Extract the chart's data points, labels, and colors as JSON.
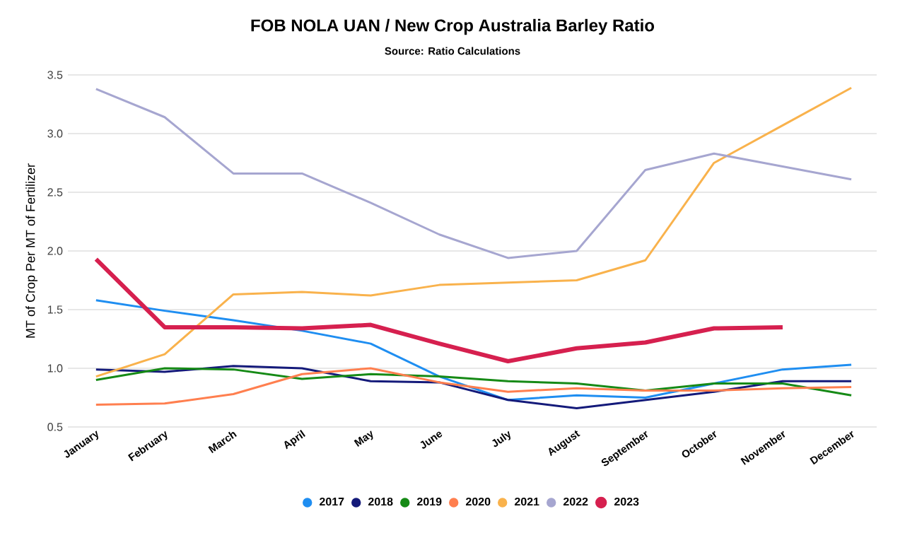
{
  "chart_data": {
    "type": "line",
    "title": "FOB NOLA UAN / New Crop Australia Barley Ratio",
    "subtitle": "Source: Ratio Calculations",
    "ylabel": "MT of Crop Per MT of Fertilizer",
    "categories": [
      "January",
      "February",
      "March",
      "April",
      "May",
      "June",
      "July",
      "August",
      "September",
      "October",
      "November",
      "December"
    ],
    "series": [
      {
        "name": "2017",
        "color": "#1f8ef1",
        "values": [
          1.58,
          1.49,
          1.41,
          1.32,
          1.21,
          0.93,
          0.73,
          0.77,
          0.75,
          0.87,
          0.99,
          1.03
        ]
      },
      {
        "name": "2018",
        "color": "#141a7a",
        "values": [
          0.99,
          0.97,
          1.02,
          1.0,
          0.89,
          0.88,
          0.73,
          0.66,
          0.73,
          0.8,
          0.89,
          0.89
        ]
      },
      {
        "name": "2019",
        "color": "#168a16",
        "values": [
          0.9,
          1.0,
          0.99,
          0.91,
          0.95,
          0.93,
          0.89,
          0.87,
          0.81,
          0.87,
          0.87,
          0.77
        ]
      },
      {
        "name": "2020",
        "color": "#ff7f4f",
        "values": [
          0.69,
          0.7,
          0.78,
          0.95,
          1.0,
          0.88,
          0.8,
          0.83,
          0.81,
          0.81,
          0.83,
          0.84
        ]
      },
      {
        "name": "2021",
        "color": "#f9b24c",
        "values": [
          0.93,
          1.12,
          1.63,
          1.65,
          1.62,
          1.71,
          1.73,
          1.75,
          1.92,
          2.75,
          3.07,
          3.39
        ]
      },
      {
        "name": "2022",
        "color": "#a6a6d0",
        "values": [
          3.38,
          3.14,
          2.66,
          2.66,
          2.41,
          2.14,
          1.94,
          2.0,
          2.69,
          2.83,
          2.72,
          2.61
        ]
      },
      {
        "name": "2023",
        "color": "#d6204f",
        "values": [
          1.93,
          1.35,
          1.35,
          1.34,
          1.37,
          1.21,
          1.06,
          1.17,
          1.22,
          1.34,
          1.35,
          null
        ]
      }
    ],
    "ylim": [
      0.5,
      3.5
    ],
    "yticks": [
      {
        "value": 0.5,
        "label": "0.5"
      },
      {
        "value": 1.0,
        "label": "1.0"
      },
      {
        "value": 1.5,
        "label": "1.5"
      },
      {
        "value": 2.0,
        "label": "2.0"
      },
      {
        "value": 2.5,
        "label": "2.5"
      },
      {
        "value": 3.0,
        "label": "3.0"
      },
      {
        "value": 3.5,
        "label": "3.5"
      }
    ],
    "grid": "y",
    "legend": "bottom"
  }
}
